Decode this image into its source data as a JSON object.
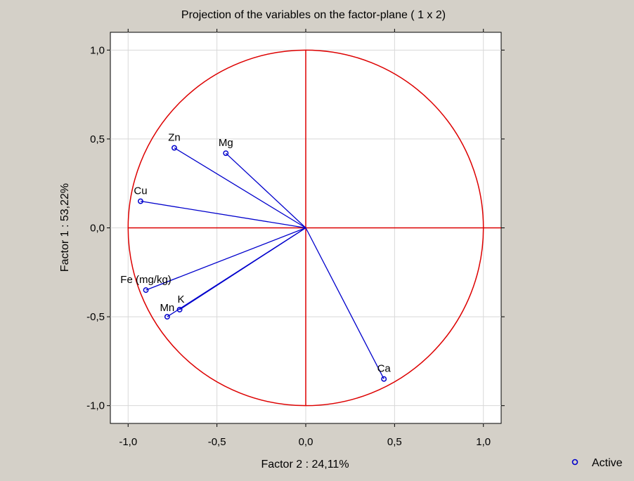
{
  "chart_data": {
    "type": "scatter",
    "title": "Projection of the variables on the factor-plane (  1 x   2)",
    "xlabel": "Factor 2 : 24,11%",
    "ylabel": "Factor 1 : 53,22%",
    "xlim": [
      -1.1,
      1.1
    ],
    "ylim": [
      -1.1,
      1.1
    ],
    "xticks": [
      "-1,0",
      "-0,5",
      "0,0",
      "0,5",
      "1,0"
    ],
    "yticks": [
      "1,0",
      "0,5",
      "0,0",
      "-0,5",
      "-1,0"
    ],
    "grid": true,
    "legend": {
      "position": "bottom-right",
      "entries": [
        "Active"
      ]
    },
    "unit_circle": true,
    "colors": {
      "vectors": "#0000cc",
      "circle": "#dd0000",
      "background": "#d4d0c8",
      "plot_area": "#ffffff",
      "grid": "#d8d8d8"
    },
    "series": [
      {
        "name": "Active",
        "points": [
          {
            "label": "Zn",
            "x": -0.74,
            "y": 0.45
          },
          {
            "label": "Mg",
            "x": -0.45,
            "y": 0.42
          },
          {
            "label": "Cu",
            "x": -0.93,
            "y": 0.15
          },
          {
            "label": "Fe (mg/kg)",
            "x": -0.9,
            "y": -0.35
          },
          {
            "label": "K",
            "x": -0.71,
            "y": -0.46
          },
          {
            "label": "Mn",
            "x": -0.78,
            "y": -0.5
          },
          {
            "label": "Ca",
            "x": 0.44,
            "y": -0.85
          }
        ]
      }
    ]
  }
}
